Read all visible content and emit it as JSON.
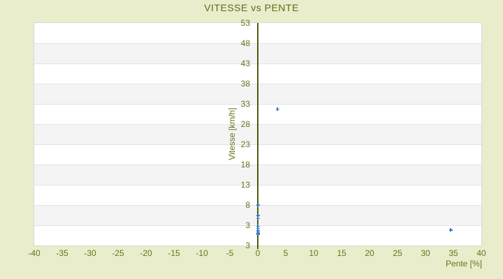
{
  "title": "VITESSE vs PENTE",
  "chart_data": {
    "type": "scatter",
    "title": "VITESSE vs PENTE",
    "xlabel": "Pente [%]",
    "ylabel": "Vitesse [km/h]",
    "xlim": [
      -40,
      40
    ],
    "ylim": [
      -2,
      53
    ],
    "x_tick_step": 5,
    "x_tick_labels": [
      "-40",
      "-35",
      "-30",
      "-25",
      "-20",
      "-15",
      "-10",
      "-5",
      "0",
      "5",
      "10",
      "15",
      "20",
      "25",
      "30",
      "35",
      "40"
    ],
    "y_tick_step": 5,
    "y_tick_labels": [
      "53",
      "48",
      "43",
      "38",
      "33",
      "28",
      "23",
      "18",
      "13",
      "8",
      "3",
      "3"
    ],
    "grid": "alternating-horizontal-bands",
    "legend": "none",
    "marker": "plus",
    "series": [
      {
        "name": "Vitesse",
        "color": "#3b7dc1",
        "points": [
          {
            "x": 0,
            "y": 8.0
          },
          {
            "x": 0,
            "y": 5.4
          },
          {
            "x": 0,
            "y": 4.6
          },
          {
            "x": 0,
            "y": 2.7
          },
          {
            "x": 0,
            "y": 2.2
          },
          {
            "x": 0,
            "y": 1.6
          },
          {
            "x": 0,
            "y": 1.1
          },
          {
            "x": 0,
            "y": 0.8
          },
          {
            "x": 3.5,
            "y": 31.7
          },
          {
            "x": 34.5,
            "y": 1.8
          }
        ]
      }
    ]
  },
  "colors": {
    "background": "#e9edcc",
    "plot_band_light": "#ffffff",
    "plot_band_dark": "#f4f4f4",
    "gridline": "#e3e3e3",
    "plot_border": "#d8d8d8",
    "axis_line": "#4e5a0e",
    "text": "#67741c",
    "title_text": "#5d6b13",
    "marker": "#3b7dc1"
  }
}
